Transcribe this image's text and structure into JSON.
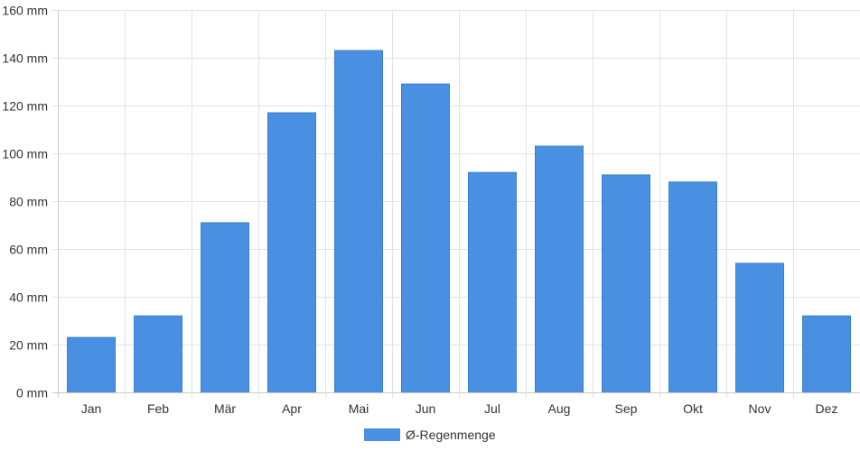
{
  "chart_data": {
    "type": "bar",
    "categories": [
      "Jan",
      "Feb",
      "Mär",
      "Apr",
      "Mai",
      "Jun",
      "Jul",
      "Aug",
      "Sep",
      "Okt",
      "Nov",
      "Dez"
    ],
    "series": [
      {
        "name": "Ø-Regenmenge",
        "values": [
          23,
          32,
          71,
          117,
          143,
          129,
          92,
          103,
          91,
          88,
          54,
          32
        ]
      }
    ],
    "ylim": [
      0,
      160
    ],
    "ytick_values": [
      0,
      20,
      40,
      60,
      80,
      100,
      120,
      140,
      160
    ],
    "ytick_labels": [
      "0 mm",
      "20 mm",
      "40 mm",
      "60 mm",
      "80 mm",
      "100 mm",
      "120 mm",
      "140 mm",
      "160 mm"
    ],
    "grid": true,
    "legend_position": "bottom",
    "colors": {
      "bar": "#4a90e2",
      "bar_border": "#3b7fd0",
      "grid": "#e2e2e2",
      "axis": "#cccccc",
      "text": "#333333"
    }
  }
}
